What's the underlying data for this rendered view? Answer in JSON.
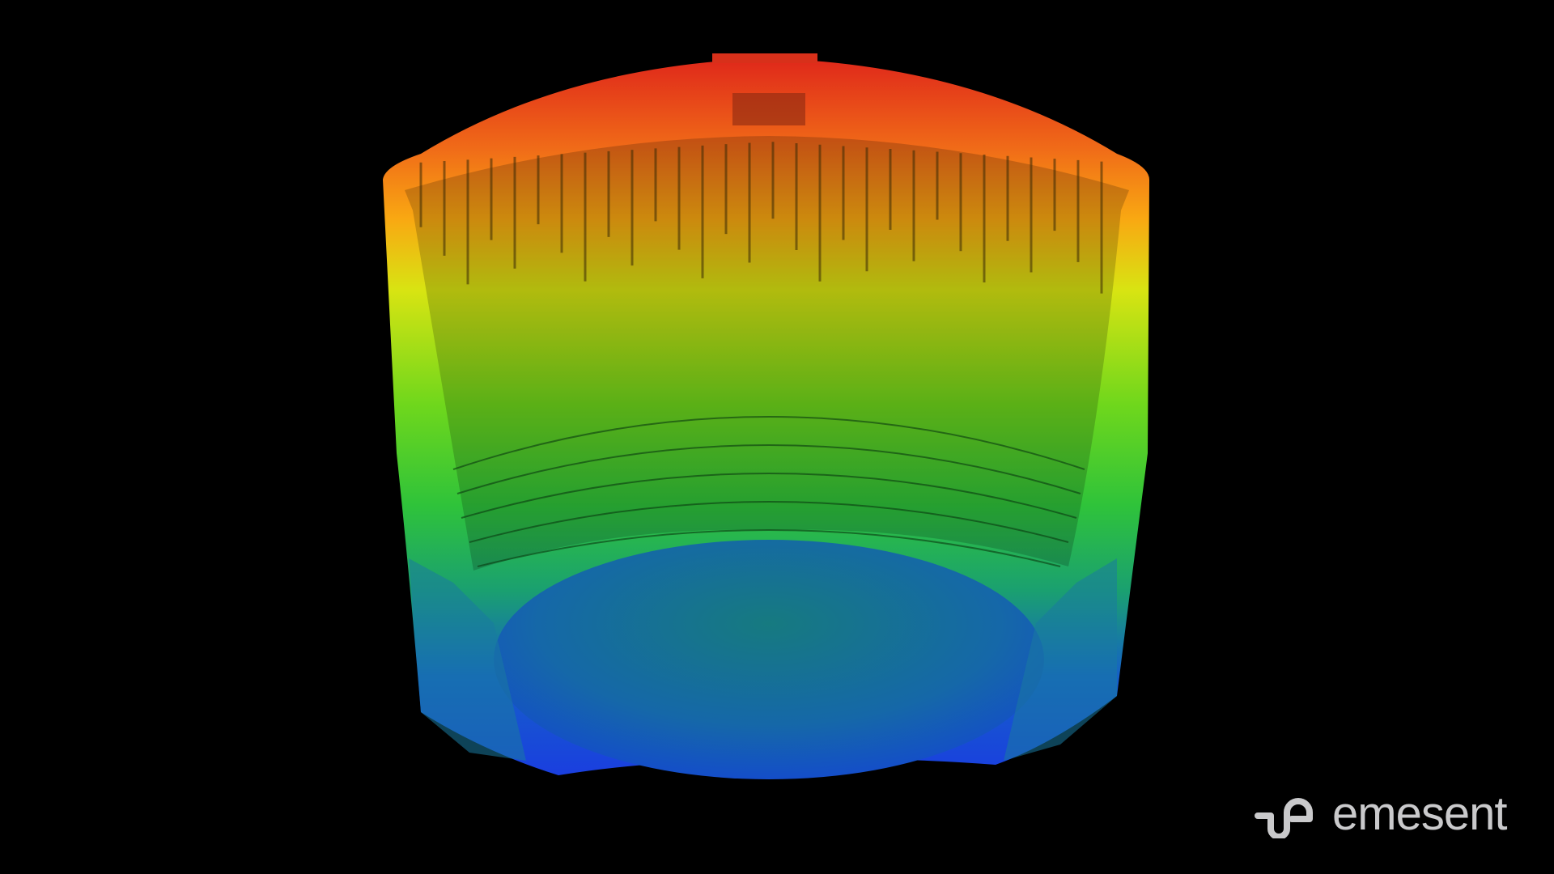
{
  "image": {
    "subject": "tank-point-cloud",
    "colors": {
      "background": "#000000",
      "top": "#e8401a",
      "upper": "#f79a12",
      "middle": "#c7e40f",
      "lower": "#2cc33a",
      "base": "#1550d8",
      "logo": "#c9c9cb"
    }
  },
  "logo": {
    "icon": "emesent-swirl-icon",
    "text": "emesent"
  }
}
